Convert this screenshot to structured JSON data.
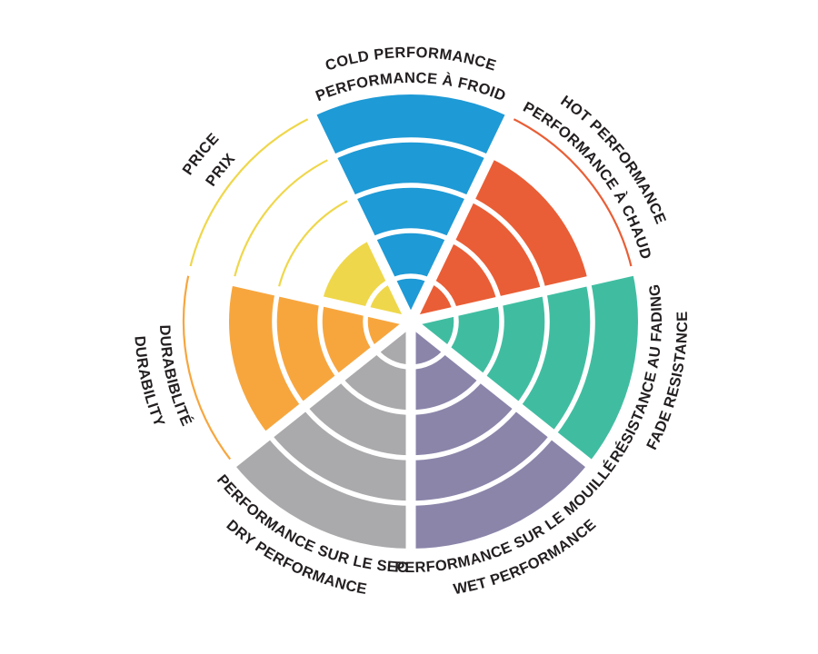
{
  "chart_data": {
    "type": "polar-rating-wheel",
    "description": "Seven-sector circular rating wheel; each sector is filled outward to its rating level out of 5 concentric rings, with thin colored arcs marking unfilled ring levels",
    "max_level": 5,
    "background_color": "#FFFFFF",
    "ring_divider_color": "#FFFFFF",
    "label_color": "#231F20",
    "legend_position": "around-wheel",
    "categories": [
      {
        "id": "cold-performance",
        "line1": "COLD PERFORMANCE",
        "line2": "PERFORMANCE À FROID",
        "value": 5,
        "color": "#1E9AD6"
      },
      {
        "id": "hot-performance",
        "line1": "HOT PERFORMANCE",
        "line2": "PERFORMANCE À CHAUD",
        "value": 4,
        "color": "#E95E36"
      },
      {
        "id": "fade-resistance",
        "line1": "RÉSISTANCE AU FADING",
        "line2": "FADE RESISTANCE",
        "value": 5,
        "color": "#40BDA1"
      },
      {
        "id": "wet-performance",
        "line1": "PERFORMANCE SUR LE MOUILLÉ",
        "line2": "WET PERFORMANCE",
        "value": 5,
        "color": "#8B85AA"
      },
      {
        "id": "dry-performance",
        "line1": "PERFORMANCE SUR LE SEC",
        "line2": "DRY PERFORMANCE",
        "value": 5,
        "color": "#AAAAAC"
      },
      {
        "id": "durability",
        "line1": "DURABIBLITÉ",
        "line2": "DURABILITY",
        "value": 4,
        "color": "#F7A63E"
      },
      {
        "id": "price",
        "line1": "PRICE",
        "line2": "PRIX",
        "value": 2,
        "color": "#EFD74B"
      }
    ]
  }
}
